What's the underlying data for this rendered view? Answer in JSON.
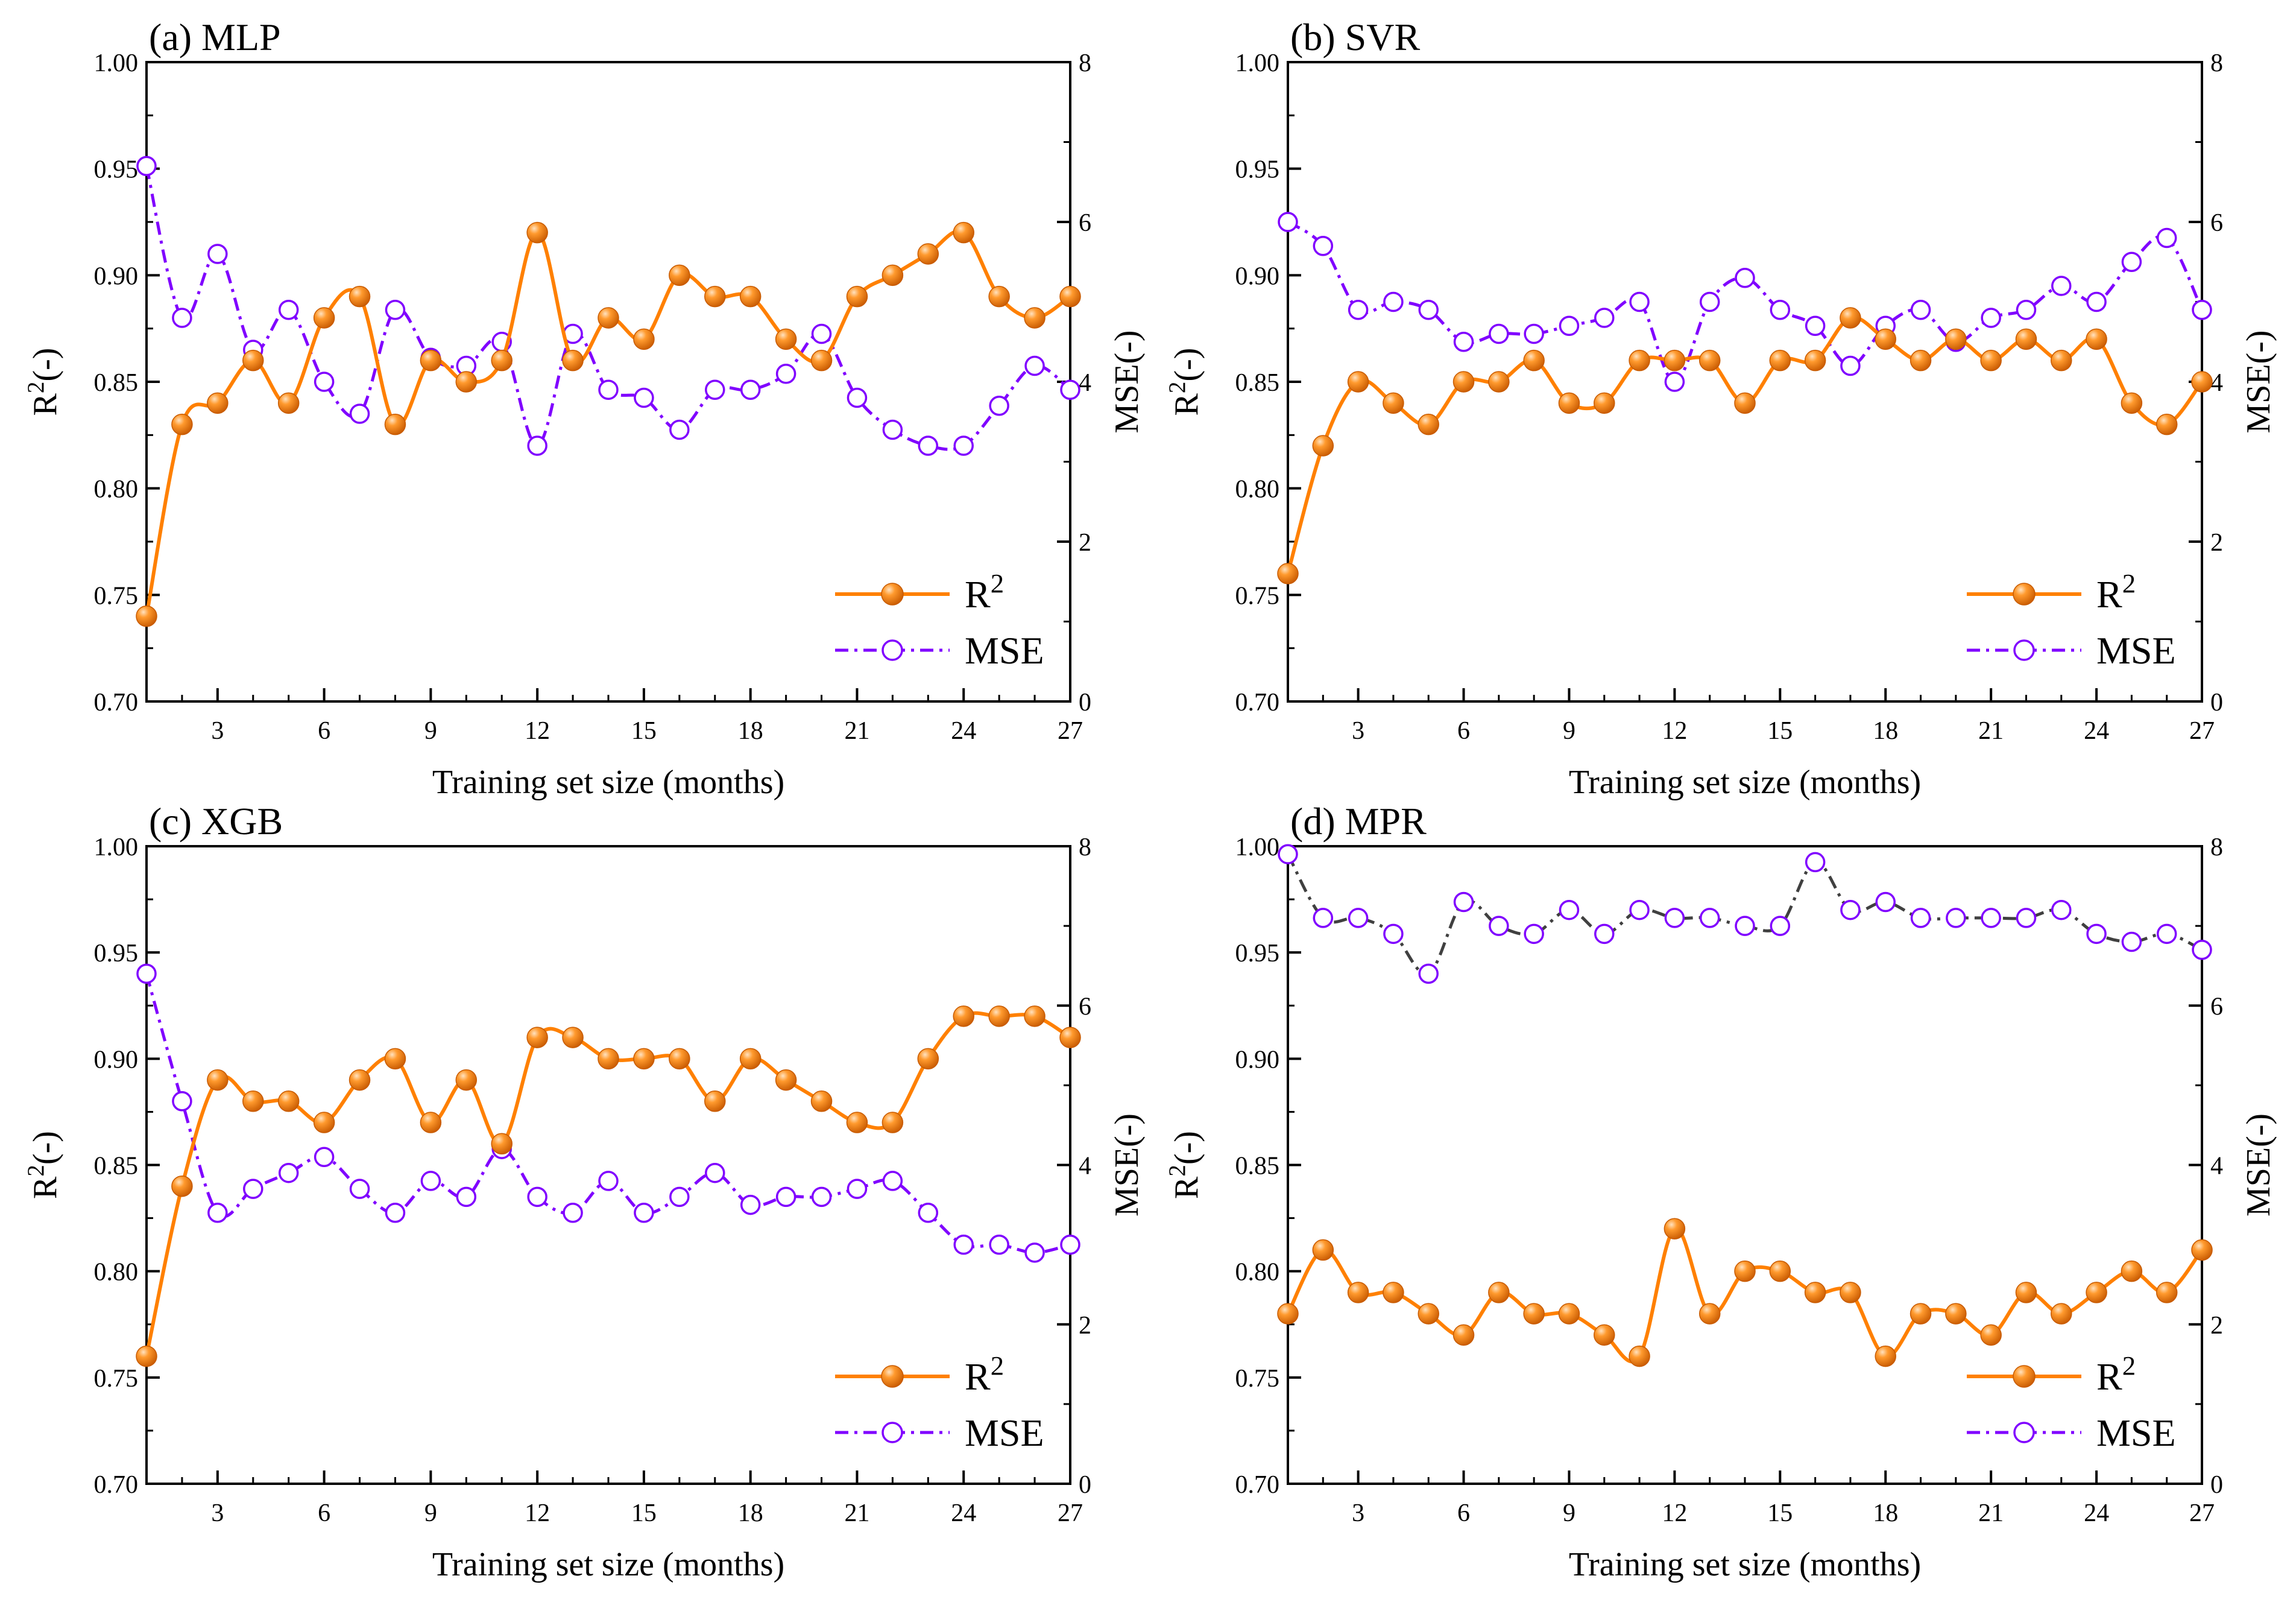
{
  "colors": {
    "r2": "#ff8000",
    "r2_dark": "#c85a00",
    "r2_light": "#ffc890",
    "mse": "#8000ff",
    "mse_dark_line": "#404040",
    "axis": "#000000"
  },
  "chart_data": [
    {
      "type": "line",
      "title": "(a) MLP",
      "xlabel": "Training set size (months)",
      "ylabel_left": "R2(-)",
      "ylabel_right": "MSE(-)",
      "xlim": [
        1,
        27
      ],
      "xticks": [
        3,
        6,
        9,
        12,
        15,
        18,
        21,
        24,
        27
      ],
      "ylim_left": [
        0.7,
        1.0
      ],
      "yticks_left": [
        "0.70",
        "0.75",
        "0.80",
        "0.85",
        "0.90",
        "0.95",
        "1.00"
      ],
      "ylim_right": [
        0,
        8
      ],
      "yticks_right": [
        "0",
        "2",
        "4",
        "6",
        "8"
      ],
      "legend": {
        "position": "bottom-right",
        "r2": "R2",
        "mse": "MSE"
      },
      "grid": false,
      "series": [
        {
          "name": "R2",
          "axis": "left",
          "x": [
            1,
            2,
            3,
            4,
            5,
            6,
            7,
            8,
            9,
            10,
            11,
            12,
            13,
            14,
            15,
            16,
            17,
            18,
            19,
            20,
            21,
            22,
            23,
            24,
            25,
            26,
            27
          ],
          "values": [
            0.74,
            0.83,
            0.84,
            0.86,
            0.84,
            0.88,
            0.89,
            0.83,
            0.86,
            0.85,
            0.86,
            0.92,
            0.86,
            0.88,
            0.87,
            0.9,
            0.89,
            0.89,
            0.87,
            0.86,
            0.89,
            0.9,
            0.91,
            0.92,
            0.89,
            0.88,
            0.89
          ]
        },
        {
          "name": "MSE",
          "axis": "right",
          "x": [
            1,
            2,
            3,
            4,
            5,
            6,
            7,
            8,
            9,
            10,
            11,
            12,
            13,
            14,
            15,
            16,
            17,
            18,
            19,
            20,
            21,
            22,
            23,
            24,
            25,
            26,
            27
          ],
          "values": [
            6.7,
            4.8,
            5.6,
            4.4,
            4.9,
            4.0,
            3.6,
            4.9,
            4.3,
            4.2,
            4.5,
            3.2,
            4.6,
            3.9,
            3.8,
            3.4,
            3.9,
            3.9,
            4.1,
            4.6,
            3.8,
            3.4,
            3.2,
            3.2,
            3.7,
            4.2,
            3.9
          ]
        }
      ]
    },
    {
      "type": "line",
      "title": "(b) SVR",
      "xlabel": "Training set size (months)",
      "ylabel_left": "R2(-)",
      "ylabel_right": "MSE(-)",
      "xlim": [
        1,
        27
      ],
      "xticks": [
        3,
        6,
        9,
        12,
        15,
        18,
        21,
        24,
        27
      ],
      "ylim_left": [
        0.7,
        1.0
      ],
      "yticks_left": [
        "0.70",
        "0.75",
        "0.80",
        "0.85",
        "0.90",
        "0.95",
        "1.00"
      ],
      "ylim_right": [
        0,
        8
      ],
      "yticks_right": [
        "0",
        "2",
        "4",
        "6",
        "8"
      ],
      "legend": {
        "position": "bottom-right",
        "r2": "R2",
        "mse": "MSE"
      },
      "grid": false,
      "series": [
        {
          "name": "R2",
          "axis": "left",
          "x": [
            1,
            2,
            3,
            4,
            5,
            6,
            7,
            8,
            9,
            10,
            11,
            12,
            13,
            14,
            15,
            16,
            17,
            18,
            19,
            20,
            21,
            22,
            23,
            24,
            25,
            26,
            27
          ],
          "values": [
            0.76,
            0.82,
            0.85,
            0.84,
            0.83,
            0.85,
            0.85,
            0.86,
            0.84,
            0.84,
            0.86,
            0.86,
            0.86,
            0.84,
            0.86,
            0.86,
            0.88,
            0.87,
            0.86,
            0.87,
            0.86,
            0.87,
            0.86,
            0.87,
            0.84,
            0.83,
            0.85
          ]
        },
        {
          "name": "MSE",
          "axis": "right",
          "x": [
            1,
            2,
            3,
            4,
            5,
            6,
            7,
            8,
            9,
            10,
            11,
            12,
            13,
            14,
            15,
            16,
            17,
            18,
            19,
            20,
            21,
            22,
            23,
            24,
            25,
            26,
            27
          ],
          "values": [
            6.0,
            5.7,
            4.9,
            5.0,
            4.9,
            4.5,
            4.6,
            4.6,
            4.7,
            4.8,
            5.0,
            4.0,
            5.0,
            5.3,
            4.9,
            4.7,
            4.2,
            4.7,
            4.9,
            4.5,
            4.8,
            4.9,
            5.2,
            5.0,
            5.5,
            5.8,
            4.9
          ]
        }
      ]
    },
    {
      "type": "line",
      "title": "(c) XGB",
      "xlabel": "Training set size (months)",
      "ylabel_left": "R2(-)",
      "ylabel_right": "MSE(-)",
      "xlim": [
        1,
        27
      ],
      "xticks": [
        3,
        6,
        9,
        12,
        15,
        18,
        21,
        24,
        27
      ],
      "ylim_left": [
        0.7,
        1.0
      ],
      "yticks_left": [
        "0.70",
        "0.75",
        "0.80",
        "0.85",
        "0.90",
        "0.95",
        "1.00"
      ],
      "ylim_right": [
        0,
        8
      ],
      "yticks_right": [
        "0",
        "2",
        "4",
        "6",
        "8"
      ],
      "legend": {
        "position": "bottom-right",
        "r2": "R2",
        "mse": "MSE"
      },
      "grid": false,
      "series": [
        {
          "name": "R2",
          "axis": "left",
          "x": [
            1,
            2,
            3,
            4,
            5,
            6,
            7,
            8,
            9,
            10,
            11,
            12,
            13,
            14,
            15,
            16,
            17,
            18,
            19,
            20,
            21,
            22,
            23,
            24,
            25,
            26,
            27
          ],
          "values": [
            0.76,
            0.84,
            0.89,
            0.88,
            0.88,
            0.87,
            0.89,
            0.9,
            0.87,
            0.89,
            0.86,
            0.91,
            0.91,
            0.9,
            0.9,
            0.9,
            0.88,
            0.9,
            0.89,
            0.88,
            0.87,
            0.87,
            0.9,
            0.92,
            0.92,
            0.92,
            0.91
          ]
        },
        {
          "name": "MSE",
          "axis": "right",
          "x": [
            1,
            2,
            3,
            4,
            5,
            6,
            7,
            8,
            9,
            10,
            11,
            12,
            13,
            14,
            15,
            16,
            17,
            18,
            19,
            20,
            21,
            22,
            23,
            24,
            25,
            26,
            27
          ],
          "values": [
            6.4,
            4.8,
            3.4,
            3.7,
            3.9,
            4.1,
            3.7,
            3.4,
            3.8,
            3.6,
            4.2,
            3.6,
            3.4,
            3.8,
            3.4,
            3.6,
            3.9,
            3.5,
            3.6,
            3.6,
            3.7,
            3.8,
            3.4,
            3.0,
            3.0,
            2.9,
            3.0
          ]
        }
      ]
    },
    {
      "type": "line",
      "title": "(d) MPR",
      "xlabel": "Training set size (months)",
      "ylabel_left": "R2(-)",
      "ylabel_right": "MSE(-)",
      "xlim": [
        1,
        27
      ],
      "xticks": [
        3,
        6,
        9,
        12,
        15,
        18,
        21,
        24,
        27
      ],
      "ylim_left": [
        0.7,
        1.0
      ],
      "yticks_left": [
        "0.70",
        "0.75",
        "0.80",
        "0.85",
        "0.90",
        "0.95",
        "1.00"
      ],
      "ylim_right": [
        0,
        8
      ],
      "yticks_right": [
        "0",
        "2",
        "4",
        "6",
        "8"
      ],
      "legend": {
        "position": "bottom-right",
        "r2": "R2",
        "mse": "MSE"
      },
      "grid": false,
      "mse_line_dark": true,
      "series": [
        {
          "name": "R2",
          "axis": "left",
          "x": [
            1,
            2,
            3,
            4,
            5,
            6,
            7,
            8,
            9,
            10,
            11,
            12,
            13,
            14,
            15,
            16,
            17,
            18,
            19,
            20,
            21,
            22,
            23,
            24,
            25,
            26,
            27
          ],
          "values": [
            0.78,
            0.81,
            0.79,
            0.79,
            0.78,
            0.77,
            0.79,
            0.78,
            0.78,
            0.77,
            0.76,
            0.82,
            0.78,
            0.8,
            0.8,
            0.79,
            0.79,
            0.76,
            0.78,
            0.78,
            0.77,
            0.79,
            0.78,
            0.79,
            0.8,
            0.79,
            0.81
          ]
        },
        {
          "name": "MSE",
          "axis": "right",
          "x": [
            1,
            2,
            3,
            4,
            5,
            6,
            7,
            8,
            9,
            10,
            11,
            12,
            13,
            14,
            15,
            16,
            17,
            18,
            19,
            20,
            21,
            22,
            23,
            24,
            25,
            26,
            27
          ],
          "values": [
            7.9,
            7.1,
            7.1,
            6.9,
            6.4,
            7.3,
            7.0,
            6.9,
            7.2,
            6.9,
            7.2,
            7.1,
            7.1,
            7.0,
            7.0,
            7.8,
            7.2,
            7.3,
            7.1,
            7.1,
            7.1,
            7.1,
            7.2,
            6.9,
            6.8,
            6.9,
            6.7
          ]
        }
      ]
    }
  ]
}
